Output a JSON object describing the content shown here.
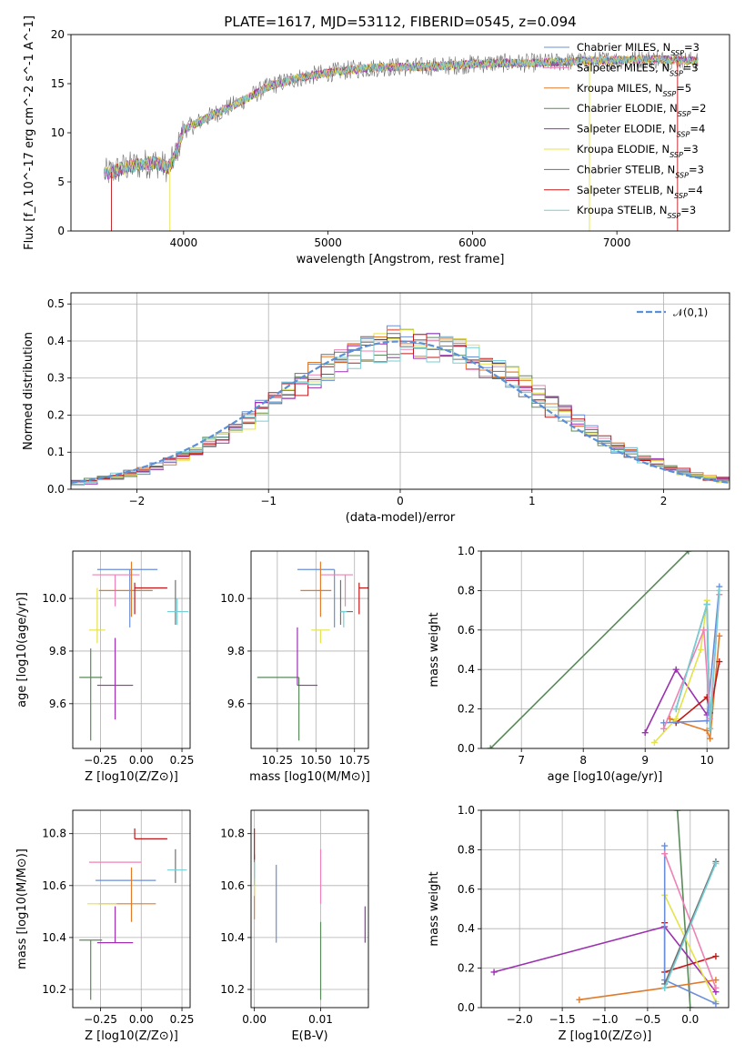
{
  "figure": {
    "title": "PLATE=1617, MJD=53112, FIBERID=0545, z=0.094"
  },
  "colors": {
    "Chabrier MILES": "#6a8fd8",
    "Salpeter MILES": "#ee82b6",
    "Kroupa MILES": "#e07b2a",
    "Chabrier ELODIE": "#5a8a5a",
    "Salpeter ELODIE": "#9b30b0",
    "Kroupa ELODIE": "#e4e34a",
    "Chabrier STELIB": "#707070",
    "Salpeter STELIB": "#c01818",
    "Kroupa STELIB": "#76cfd6"
  },
  "chart_data": [
    {
      "id": "spectrum",
      "type": "line",
      "title": "PLATE=1617, MJD=53112, FIBERID=0545, z=0.094",
      "xlabel": "wavelength [Angstrom, rest frame]",
      "ylabel": "Flux [f_λ 10^-17 erg cm^-2 s^-1 A^-1]",
      "xlim": [
        3220,
        7780
      ],
      "ylim": [
        0,
        20
      ],
      "xticks": [
        4000,
        5000,
        6000,
        7000
      ],
      "yticks": [
        0,
        5,
        10,
        15,
        20
      ],
      "grid": false,
      "legend": "top-right",
      "series": [
        {
          "name": "Chabrier MILES",
          "nssp": "3"
        },
        {
          "name": "Salpeter MILES",
          "nssp": "3"
        },
        {
          "name": "Kroupa MILES",
          "nssp": "5"
        },
        {
          "name": "Chabrier ELODIE",
          "nssp": "2"
        },
        {
          "name": "Salpeter ELODIE",
          "nssp": "4"
        },
        {
          "name": "Kroupa ELODIE",
          "nssp": "3"
        },
        {
          "name": "Chabrier STELIB",
          "nssp": "3"
        },
        {
          "name": "Salpeter STELIB",
          "nssp": "4"
        },
        {
          "name": "Kroupa STELIB",
          "nssp": "3"
        }
      ],
      "continuum": {
        "x": [
          3450,
          3600,
          3800,
          3900,
          3950,
          4000,
          4200,
          4400,
          4600,
          4800,
          5000,
          5200,
          5400,
          5600,
          5800,
          6000,
          6200,
          6400,
          6600,
          6800,
          7000,
          7200,
          7400,
          7560
        ],
        "y": [
          5.8,
          6.5,
          7.0,
          6.4,
          8.0,
          10.3,
          11.8,
          13.2,
          14.8,
          15.6,
          16.1,
          16.5,
          16.7,
          16.7,
          16.8,
          17.0,
          17.1,
          17.1,
          17.2,
          17.3,
          17.4,
          17.5,
          17.4,
          17.3
        ]
      }
    },
    {
      "id": "residuals",
      "type": "line",
      "xlabel": "(data-model)/error",
      "ylabel": "Normed distribution",
      "xlim": [
        -2.5,
        2.5
      ],
      "ylim": [
        0,
        0.53
      ],
      "xticks": [
        -2,
        -1,
        0,
        1,
        2
      ],
      "yticks": [
        0.0,
        0.1,
        0.2,
        0.3,
        0.4,
        0.5
      ],
      "grid": true,
      "legend": "top-right",
      "legend_label": "𝒩(0,1)",
      "bin_width": 0.1
    },
    {
      "id": "age_vs_Z",
      "type": "scatter",
      "xlabel": "Z [log10(Z/Z⊙)]",
      "ylabel": "age  [log10(age/yr)]",
      "xlim": [
        -0.42,
        0.3
      ],
      "ylim": [
        9.43,
        10.18
      ],
      "xticks": [
        -0.25,
        0.0,
        0.25
      ],
      "yticks": [
        9.6,
        9.8,
        10.0
      ],
      "grid": true,
      "points": [
        {
          "model": "Chabrier MILES",
          "x": -0.07,
          "y": 10.11,
          "xerr": [
            0.2,
            0.17
          ],
          "yerr": [
            0.22,
            0.0
          ]
        },
        {
          "model": "Salpeter MILES",
          "x": -0.16,
          "y": 10.09,
          "xerr": [
            0.14,
            0.15
          ],
          "yerr": [
            0.12,
            0.0
          ]
        },
        {
          "model": "Kroupa MILES",
          "x": -0.06,
          "y": 10.03,
          "xerr": [
            0.2,
            0.13
          ],
          "yerr": [
            0.1,
            0.11
          ]
        },
        {
          "model": "Chabrier ELODIE",
          "x": -0.31,
          "y": 9.7,
          "xerr": [
            0.07,
            0.07
          ],
          "yerr": [
            0.24,
            0.11
          ]
        },
        {
          "model": "Salpeter ELODIE",
          "x": -0.16,
          "y": 9.67,
          "xerr": [
            0.11,
            0.11
          ],
          "yerr": [
            0.13,
            0.18
          ]
        },
        {
          "model": "Kroupa ELODIE",
          "x": -0.27,
          "y": 9.88,
          "xerr": [
            0.05,
            0.05
          ],
          "yerr": [
            0.05,
            0.16
          ]
        },
        {
          "model": "Chabrier STELIB",
          "x": 0.21,
          "y": 9.95,
          "xerr": [
            0.0,
            0.0
          ],
          "yerr": [
            0.05,
            0.12
          ]
        },
        {
          "model": "Salpeter STELIB",
          "x": -0.04,
          "y": 10.04,
          "xerr": [
            0.0,
            0.2
          ],
          "yerr": [
            0.1,
            0.02
          ]
        },
        {
          "model": "Kroupa STELIB",
          "x": 0.22,
          "y": 9.95,
          "xerr": [
            0.06,
            0.07
          ],
          "yerr": [
            0.05,
            0.05
          ]
        }
      ]
    },
    {
      "id": "age_vs_mass",
      "type": "scatter",
      "xlabel": "mass [log10(M/M⊙)]",
      "ylabel": "",
      "xlim": [
        10.08,
        10.84
      ],
      "ylim": [
        9.43,
        10.18
      ],
      "xticks": [
        10.25,
        10.5,
        10.75
      ],
      "yticks": [
        9.6,
        9.8,
        10.0
      ],
      "grid": true,
      "points": [
        {
          "model": "Chabrier MILES",
          "x": 10.62,
          "y": 10.11,
          "xerr": [
            0.24,
            0.0
          ],
          "yerr": [
            0.22,
            0.0
          ]
        },
        {
          "model": "Salpeter MILES",
          "x": 10.69,
          "y": 10.09,
          "xerr": [
            0.16,
            0.05
          ],
          "yerr": [
            0.12,
            0.0
          ]
        },
        {
          "model": "Kroupa MILES",
          "x": 10.53,
          "y": 10.03,
          "xerr": [
            0.13,
            0.07
          ],
          "yerr": [
            0.1,
            0.11
          ]
        },
        {
          "model": "Chabrier ELODIE",
          "x": 10.39,
          "y": 9.7,
          "xerr": [
            0.27,
            0.0
          ],
          "yerr": [
            0.24,
            0.0
          ]
        },
        {
          "model": "Salpeter ELODIE",
          "x": 10.38,
          "y": 9.67,
          "xerr": [
            0.0,
            0.13
          ],
          "yerr": [
            0.0,
            0.22
          ]
        },
        {
          "model": "Kroupa ELODIE",
          "x": 10.53,
          "y": 9.88,
          "xerr": [
            0.06,
            0.06
          ],
          "yerr": [
            0.05,
            0.0
          ]
        },
        {
          "model": "Chabrier STELIB",
          "x": 10.66,
          "y": 9.95,
          "xerr": [
            0.0,
            0.08
          ],
          "yerr": [
            0.05,
            0.12
          ]
        },
        {
          "model": "Salpeter STELIB",
          "x": 10.78,
          "y": 10.04,
          "xerr": [
            0.0,
            0.06
          ],
          "yerr": [
            0.1,
            0.02
          ]
        },
        {
          "model": "Kroupa STELIB",
          "x": 10.68,
          "y": 9.95,
          "xerr": [
            0.02,
            0.02
          ],
          "yerr": [
            0.06,
            0.0
          ]
        }
      ]
    },
    {
      "id": "mass_weight_vs_age",
      "type": "line",
      "xlabel": "age  [log10(age/yr)]",
      "ylabel": "mass weight",
      "xlim": [
        6.35,
        10.35
      ],
      "ylim": [
        0,
        1.0
      ],
      "xticks": [
        7,
        8,
        9,
        10
      ],
      "yticks": [
        0.0,
        0.2,
        0.4,
        0.6,
        0.8,
        1.0
      ],
      "grid": true,
      "series": [
        {
          "name": "Chabrier ELODIE",
          "x": [
            6.5,
            9.7
          ],
          "y": [
            0.0,
            1.0
          ]
        },
        {
          "name": "Salpeter ELODIE",
          "x": [
            9.0,
            9.5,
            10.0
          ],
          "y": [
            0.08,
            0.4,
            0.17
          ]
        },
        {
          "name": "Kroupa MILES",
          "x": [
            9.4,
            10.0,
            10.05,
            10.2
          ],
          "y": [
            0.15,
            0.09,
            0.05,
            0.57
          ]
        },
        {
          "name": "Salpeter STELIB",
          "x": [
            9.5,
            10.0,
            10.05,
            10.2
          ],
          "y": [
            0.13,
            0.26,
            0.18,
            0.44
          ]
        },
        {
          "name": "Kroupa ELODIE",
          "x": [
            9.15,
            9.5,
            9.9,
            10.0
          ],
          "y": [
            0.03,
            0.15,
            0.5,
            0.75
          ]
        },
        {
          "name": "Chabrier MILES",
          "x": [
            9.3,
            10.0,
            10.2
          ],
          "y": [
            0.13,
            0.14,
            0.82
          ]
        },
        {
          "name": "Salpeter MILES",
          "x": [
            9.3,
            9.95,
            10.05,
            10.2
          ],
          "y": [
            0.1,
            0.6,
            0.15,
            0.78
          ]
        },
        {
          "name": "Chabrier STELIB",
          "x": [
            9.5,
            10.0,
            10.05
          ],
          "y": [
            0.2,
            0.73,
            0.1
          ]
        },
        {
          "name": "Kroupa STELIB",
          "x": [
            9.5,
            10.0,
            10.05,
            10.2
          ],
          "y": [
            0.2,
            0.73,
            0.1,
            0.8
          ]
        }
      ]
    },
    {
      "id": "mass_vs_Z",
      "type": "scatter",
      "xlabel": "Z [log10(Z/Z⊙)]",
      "ylabel": "mass [log10(M/M⊙)]",
      "xlim": [
        -0.42,
        0.3
      ],
      "ylim": [
        10.13,
        10.89
      ],
      "xticks": [
        -0.25,
        0.0,
        0.25
      ],
      "yticks": [
        10.2,
        10.4,
        10.6,
        10.8
      ],
      "grid": true,
      "points": [
        {
          "model": "Chabrier MILES",
          "x": -0.28,
          "y": 10.62,
          "xerr": [
            0.0,
            0.37
          ],
          "yerr": [
            0.0,
            0.0
          ]
        },
        {
          "model": "Salpeter MILES",
          "x": -0.16,
          "y": 10.69,
          "xerr": [
            0.16,
            0.16
          ],
          "yerr": [
            0.0,
            0.0
          ]
        },
        {
          "model": "Kroupa MILES",
          "x": -0.06,
          "y": 10.53,
          "xerr": [
            0.2,
            0.15
          ],
          "yerr": [
            0.07,
            0.14
          ]
        },
        {
          "model": "Chabrier ELODIE",
          "x": -0.31,
          "y": 10.39,
          "xerr": [
            0.07,
            0.07
          ],
          "yerr": [
            0.23,
            0.0
          ]
        },
        {
          "model": "Salpeter ELODIE",
          "x": -0.16,
          "y": 10.38,
          "xerr": [
            0.11,
            0.11
          ],
          "yerr": [
            0.0,
            0.14
          ]
        },
        {
          "model": "Kroupa ELODIE",
          "x": -0.27,
          "y": 10.53,
          "xerr": [
            0.06,
            0.12
          ],
          "yerr": [
            0.0,
            0.0
          ]
        },
        {
          "model": "Chabrier STELIB",
          "x": 0.21,
          "y": 10.66,
          "xerr": [
            0.0,
            0.0
          ],
          "yerr": [
            0.05,
            0.08
          ]
        },
        {
          "model": "Salpeter STELIB",
          "x": -0.04,
          "y": 10.78,
          "xerr": [
            0.0,
            0.2
          ],
          "yerr": [
            0.0,
            0.04
          ]
        },
        {
          "model": "Kroupa STELIB",
          "x": 0.22,
          "y": 10.66,
          "xerr": [
            0.06,
            0.06
          ],
          "yerr": [
            0.0,
            0.0
          ]
        }
      ]
    },
    {
      "id": "mass_vs_ebv",
      "type": "scatter",
      "xlabel": "E(B-V)",
      "ylabel": "",
      "xlim": [
        -0.0005,
        0.0172
      ],
      "ylim": [
        10.13,
        10.89
      ],
      "xticks": [
        0.0,
        0.01
      ],
      "xticklabels": [
        "0.00",
        "0.01"
      ],
      "yticks": [
        10.2,
        10.4,
        10.6,
        10.8
      ],
      "grid": true,
      "points": [
        {
          "model": "Chabrier MILES",
          "x": 0.0033,
          "y": 10.53,
          "xerr": [
            0,
            0
          ],
          "yerr": [
            0.15,
            0.15
          ]
        },
        {
          "model": "Salpeter MILES",
          "x": 0.01,
          "y": 10.6,
          "xerr": [
            0,
            0
          ],
          "yerr": [
            0.07,
            0.14
          ]
        },
        {
          "model": "Kroupa MILES",
          "x": 0.0,
          "y": 10.55,
          "xerr": [
            0,
            0
          ],
          "yerr": [
            0.08,
            0.08
          ]
        },
        {
          "model": "Chabrier ELODIE",
          "x": 0.01,
          "y": 10.3,
          "xerr": [
            0,
            0
          ],
          "yerr": [
            0.14,
            0.16
          ]
        },
        {
          "model": "Salpeter ELODIE",
          "x": 0.0167,
          "y": 10.45,
          "xerr": [
            0,
            0
          ],
          "yerr": [
            0.07,
            0.07
          ]
        },
        {
          "model": "Kroupa ELODIE",
          "x": 0.0,
          "y": 10.6,
          "xerr": [
            0,
            0
          ],
          "yerr": [
            0.04,
            0.04
          ]
        },
        {
          "model": "Chabrier STELIB",
          "x": 0.0,
          "y": 10.68,
          "xerr": [
            0,
            0
          ],
          "yerr": [
            0.05,
            0.04
          ]
        },
        {
          "model": "Salpeter STELIB",
          "x": 0.0,
          "y": 10.75,
          "xerr": [
            0,
            0
          ],
          "yerr": [
            0.05,
            0.07
          ]
        },
        {
          "model": "Kroupa STELIB",
          "x": 0.0,
          "y": 10.66,
          "xerr": [
            0,
            0
          ],
          "yerr": [
            0.06,
            0.03
          ]
        }
      ]
    },
    {
      "id": "mass_weight_vs_Z",
      "type": "line",
      "xlabel": "Z [log10(Z/Z⊙)]",
      "ylabel": "mass weight",
      "xlim": [
        -2.45,
        0.45
      ],
      "ylim": [
        0,
        1.0
      ],
      "xticks": [
        -2.0,
        -1.5,
        -1.0,
        -0.5,
        0.0
      ],
      "yticks": [
        0.0,
        0.2,
        0.4,
        0.6,
        0.8,
        1.0
      ],
      "grid": true,
      "series": [
        {
          "name": "Chabrier ELODIE",
          "x": [
            -0.15,
            0.0
          ],
          "y": [
            1.0,
            0.0
          ]
        },
        {
          "name": "Salpeter ELODIE",
          "x": [
            -2.3,
            -0.3,
            0.3
          ],
          "y": [
            0.18,
            0.41,
            0.08
          ]
        },
        {
          "name": "Kroupa MILES",
          "x": [
            -1.3,
            -0.3,
            0.3
          ],
          "y": [
            0.04,
            0.1,
            0.14
          ]
        },
        {
          "name": "Salpeter STELIB",
          "x": [
            -0.3,
            -0.3,
            0.3
          ],
          "y": [
            0.43,
            0.18,
            0.26
          ]
        },
        {
          "name": "Kroupa ELODIE",
          "x": [
            -0.3,
            0.3
          ],
          "y": [
            0.57,
            0.03
          ]
        },
        {
          "name": "Chabrier MILES",
          "x": [
            -0.3,
            -0.3,
            0.3
          ],
          "y": [
            0.82,
            0.14,
            0.02
          ]
        },
        {
          "name": "Salpeter MILES",
          "x": [
            -0.3,
            0.3
          ],
          "y": [
            0.78,
            0.1
          ]
        },
        {
          "name": "Chabrier STELIB",
          "x": [
            -0.3,
            0.3
          ],
          "y": [
            0.12,
            0.74
          ]
        },
        {
          "name": "Kroupa STELIB",
          "x": [
            -0.3,
            0.3
          ],
          "y": [
            0.1,
            0.73
          ]
        }
      ]
    }
  ]
}
